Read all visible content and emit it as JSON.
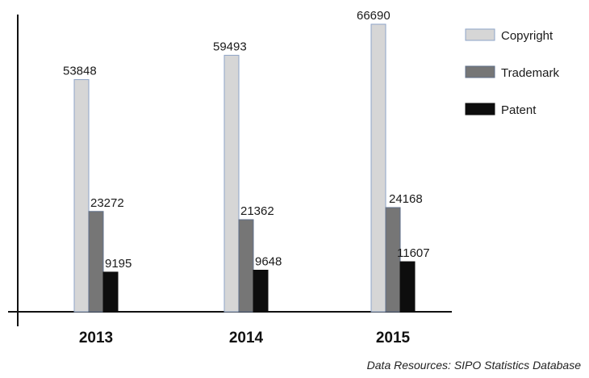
{
  "chart_data": {
    "type": "bar",
    "categories": [
      "2013",
      "2014",
      "2015"
    ],
    "series": [
      {
        "name": "Copyright",
        "values": [
          53848,
          59493,
          66690
        ],
        "color": "#d6d6d6",
        "stroke": "#8ea4c8"
      },
      {
        "name": "Trademark",
        "values": [
          23272,
          21362,
          24168
        ],
        "color": "#767676",
        "stroke": "#5f6f8a"
      },
      {
        "name": "Patent",
        "values": [
          9195,
          9648,
          11607
        ],
        "color": "#0d0d0d",
        "stroke": "#0d0d0d"
      }
    ],
    "ylim": [
      0,
      66690
    ],
    "grid": false,
    "legend_position": "top-right",
    "source_note": "Data Resources: SIPO Statistics Database"
  }
}
